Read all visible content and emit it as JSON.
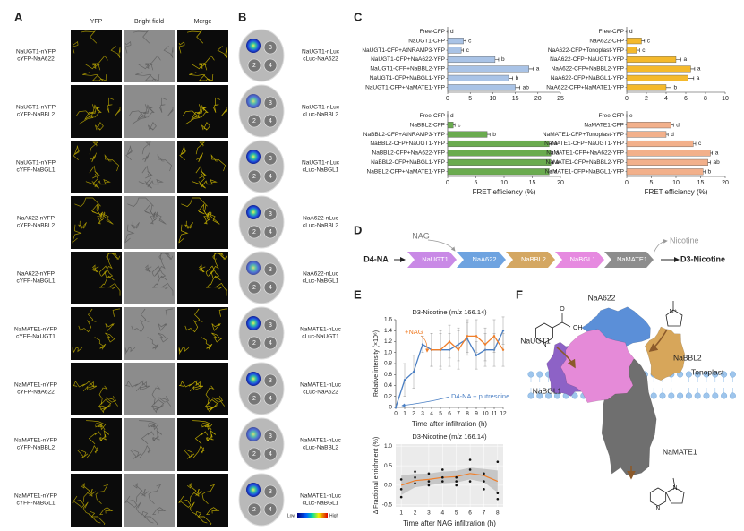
{
  "panel_a": {
    "label": "A",
    "columns": [
      "YFP",
      "Bright field",
      "Merge"
    ],
    "rows": [
      [
        "NaUGT1-nYFP",
        "cYFP-NaA622"
      ],
      [
        "NaUGT1-nYFP",
        "cYFP-NaBBL2"
      ],
      [
        "NaUGT1-nYFP",
        "cYFP-NaBGL1"
      ],
      [
        "NaA622-nYFP",
        "cYFP-NaBBL2"
      ],
      [
        "NaA622-nYFP",
        "cYFP-NaBGL1"
      ],
      [
        "NaMATE1-nYFP",
        "cYFP-NaUGT1"
      ],
      [
        "NaMATE1-nYFP",
        "cYFP-NaA622"
      ],
      [
        "NaMATE1-nYFP",
        "cYFP-NaBBL2"
      ],
      [
        "NaMATE1-nYFP",
        "cYFP-NaBGL1"
      ]
    ]
  },
  "panel_b": {
    "label": "B",
    "rows": [
      [
        "NaUGT1-nLuc",
        "cLuc-NaA622"
      ],
      [
        "NaUGT1-nLuc",
        "cLuc-NaBBL2"
      ],
      [
        "NaUGT1-nLuc",
        "cLuc-NaBGL1"
      ],
      [
        "NaA622-nLuc",
        "cLuc-NaBBL2"
      ],
      [
        "NaA622-nLuc",
        "cLuc-NaBGL1"
      ],
      [
        "NaMATE1-nLuc",
        "cLuc-NaUGT1"
      ],
      [
        "NaMATE1-nLuc",
        "cLuc-NaA622"
      ],
      [
        "NaMATE1-nLuc",
        "cLuc-NaBBL2"
      ],
      [
        "NaMATE1-nLuc",
        "cLuc-NaBGL1"
      ]
    ],
    "leaf_numbers": [
      "3",
      "2",
      "4"
    ],
    "colorbar": [
      "Low",
      "High"
    ]
  },
  "panel_c": {
    "label": "C"
  },
  "panel_d": {
    "label": "D",
    "substrate": "D4-NA",
    "cofactor": "NAG",
    "enzymes": [
      "NaUGT1",
      "NaA622",
      "NaBBL2",
      "NaBGL1",
      "NaMATE1"
    ],
    "byproduct": "Nicotine",
    "product": "D3-Nicotine"
  },
  "panel_e": {
    "label": "E"
  },
  "panel_f": {
    "label": "F",
    "proteins": [
      "NaA622",
      "NaUGT1",
      "NaBBL2",
      "NaBGL1",
      "NaMATE1"
    ],
    "membrane": "Tonoplast",
    "nicotinic_acid_atoms": [
      "O",
      "OH",
      "N"
    ],
    "pyrrolinium_atoms": [
      "N⁺"
    ],
    "nicotine_atoms": [
      "N",
      "N"
    ]
  },
  "chart_data": [
    {
      "type": "hbar",
      "categories": [
        "Free-CFP",
        "NaUGT1-CFP",
        "NaUGT1-CFP+AtNRAMP3-YFP",
        "NaUGT1-CFP+NaA622-YFP",
        "NaUGT1-CFP+NaBBL2-YFP",
        "NaUGT1-CFP+NaBGL1-YFP",
        "NaUGT1-CFP+NaMATE1-YFP"
      ],
      "values": [
        0,
        3.5,
        3,
        10.5,
        18,
        13.5,
        15
      ],
      "errors": [
        0,
        0.5,
        0.5,
        0.8,
        1,
        0.9,
        1
      ],
      "letters": [
        "d",
        "c",
        "c",
        "b",
        "a",
        "b",
        "ab"
      ],
      "color": "#a9c3e6",
      "xlim": [
        0,
        25
      ],
      "xticks": [
        0,
        5,
        10,
        15,
        20,
        25
      ]
    },
    {
      "type": "hbar",
      "categories": [
        "Free-CFP",
        "NaA622-CFP",
        "NaA622-CFP+Tonoplast-YFP",
        "NaA622-CFP+NaUGT1-YFP",
        "NaA622-CFP+NaBBL2-YFP",
        "NaA622-CFP+NaBGL1-YFP",
        "NaA622-CFP+NaMATE1-YFP"
      ],
      "values": [
        0,
        1.5,
        1,
        5,
        6.5,
        6.2,
        4
      ],
      "errors": [
        0,
        0.3,
        0.3,
        0.5,
        0.4,
        0.6,
        0.5
      ],
      "letters": [
        "d",
        "c",
        "c",
        "a",
        "a",
        "a",
        "b"
      ],
      "color": "#f4b92c",
      "xlim": [
        0,
        10
      ],
      "xticks": [
        0,
        2,
        4,
        6,
        8,
        10
      ]
    },
    {
      "type": "hbar",
      "categories": [
        "Free-CFP",
        "NaBBL2-CFP",
        "NaBBL2-CFP+AtNRAMP3-YFP",
        "NaBBL2-CFP+NaUGT1-YFP",
        "NaBBL2-CFP+NaA622-YFP",
        "NaBBL2-CFP+NaBGL1-YFP",
        "NaBBL2-CFP+NaMATE1-YFP"
      ],
      "values": [
        0,
        1,
        7,
        18,
        18.3,
        18.3,
        18
      ],
      "errors": [
        0,
        0.3,
        0.5,
        0.4,
        0.4,
        0.4,
        0.4
      ],
      "letters": [
        "d",
        "c",
        "b",
        "a",
        "a",
        "a",
        "a"
      ],
      "color": "#6aab4f",
      "xlim": [
        0,
        20
      ],
      "xticks": [
        0,
        5,
        10,
        15,
        20
      ],
      "xlabel": "FRET efficiency (%)"
    },
    {
      "type": "hbar",
      "categories": [
        "Free-CFP",
        "NaMATE1-CFP",
        "NaMATE1-CFP+Tonoplast-YFP",
        "NaMATE1-CFP+NaUGT1-YFP",
        "NaMATE1-CFP+NaA622-YFP",
        "NaMATE1-CFP+NaBBL2-YFP",
        "NaMATE1-CFP+NaBGL1-YFP"
      ],
      "values": [
        0,
        9,
        8,
        13.5,
        17,
        16.5,
        15.5
      ],
      "errors": [
        0,
        0.5,
        0.4,
        0.5,
        0.4,
        0.5,
        0.4
      ],
      "letters": [
        "e",
        "d",
        "d",
        "c",
        "a",
        "ab",
        "b"
      ],
      "color": "#f2b08b",
      "xlim": [
        0,
        20
      ],
      "xticks": [
        0,
        5,
        10,
        15,
        20
      ],
      "xlabel": "FRET efficiency (%)"
    },
    {
      "type": "line",
      "title": "D3-Nicotine (m/z 166.14)",
      "xlabel": "Time after infiltration (h)",
      "ylabel": "Relative intensity (×10⁶)",
      "x": [
        0,
        1,
        2,
        3,
        4,
        5,
        6,
        7,
        8,
        9,
        10,
        11,
        12
      ],
      "series": [
        {
          "name": "D4-NA + putrescine",
          "color": "#4a7fc4",
          "values": [
            0,
            0.5,
            0.65,
            1.15,
            1.05,
            1.05,
            1.05,
            1.15,
            1.25,
            0.95,
            1.05,
            1.05,
            1.4
          ],
          "errors": [
            0,
            0.3,
            0.3,
            0.15,
            0.3,
            0.35,
            0.3,
            0.3,
            0.3,
            0.25,
            0.3,
            0.3,
            0.25
          ]
        },
        {
          "name": "+NAG",
          "color": "#f07f2a",
          "values": [
            null,
            null,
            null,
            null,
            1.05,
            1.05,
            1.2,
            1.05,
            1.3,
            1.3,
            1.15,
            1.3,
            1.05
          ],
          "errors": [
            null,
            null,
            null,
            null,
            0.3,
            0.3,
            0.3,
            0.35,
            0.3,
            0.3,
            0.3,
            0.3,
            0.3
          ]
        }
      ],
      "xlim": [
        0,
        12
      ],
      "xticks": [
        0,
        1,
        2,
        3,
        4,
        5,
        6,
        7,
        8,
        9,
        10,
        11,
        12
      ],
      "ylim": [
        0,
        1.6
      ],
      "yticks": [
        0,
        0.2,
        0.4,
        0.6,
        0.8,
        {
          "value": 1,
          "label": "1.0"
        },
        1.2,
        1.4,
        1.6
      ]
    },
    {
      "type": "scatter",
      "title": "D3-Nicotine (m/z 166.14)",
      "xlabel": "Time after NAG infiltration (h)",
      "ylabel": "Δ Fractional enrichment (%)",
      "x": [
        1,
        1,
        1,
        2,
        2,
        2,
        3,
        3,
        3,
        4,
        4,
        4,
        5,
        5,
        5,
        6,
        6,
        6,
        7,
        7,
        7,
        8,
        8,
        8
      ],
      "values": [
        0.15,
        -0.1,
        -0.3,
        0.35,
        0.2,
        0.05,
        0.3,
        0.1,
        0,
        0.4,
        0.2,
        0.1,
        0.2,
        0.1,
        0,
        0.65,
        0.4,
        0.1,
        0.3,
        0.1,
        -0.1,
        0.6,
        -0.2,
        -0.35
      ],
      "color": "#111111",
      "trend": {
        "color": "#f07f2a",
        "x": [
          1,
          2,
          3,
          4,
          5,
          6,
          7,
          8
        ],
        "values": [
          0,
          0.12,
          0.15,
          0.2,
          0.22,
          0.3,
          0.25,
          0.1
        ],
        "lower": [
          -0.25,
          -0.05,
          0,
          0.05,
          0.07,
          0.15,
          0.08,
          -0.18
        ],
        "upper": [
          0.25,
          0.29,
          0.3,
          0.35,
          0.37,
          0.45,
          0.42,
          0.38
        ]
      },
      "xlim": [
        0.6,
        8.4
      ],
      "xticks": [
        1,
        2,
        3,
        4,
        5,
        6,
        7,
        8
      ],
      "ylim": [
        -0.55,
        1.05
      ],
      "yticks": [
        {
          "value": 1,
          "label": "1.0"
        },
        0.5,
        {
          "value": 0,
          "label": "0.0"
        },
        -0.5
      ],
      "grid": true
    }
  ]
}
